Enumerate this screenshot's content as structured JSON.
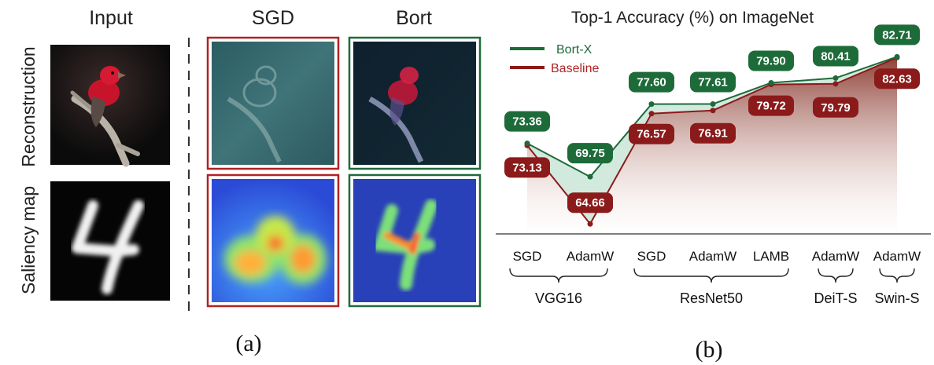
{
  "panel_a": {
    "caption": "(a)",
    "column_headers": {
      "input": "Input",
      "sgd": "SGD",
      "bort": "Bort"
    },
    "row_labels": {
      "reconstruction": "Reconstruction",
      "saliency": "Saliency map"
    },
    "colors": {
      "sgd_frame": "#b22222",
      "bort_frame": "#1e6b3a"
    }
  },
  "panel_b": {
    "caption": "(b)"
  },
  "chart_data": {
    "type": "line",
    "title": "Top-1 Accuracy (%) on ImageNet",
    "categories": [
      "SGD",
      "AdamW",
      "SGD",
      "AdamW",
      "LAMB",
      "AdamW",
      "AdamW"
    ],
    "groups": [
      {
        "name": "VGG16",
        "span": [
          0,
          1
        ]
      },
      {
        "name": "ResNet50",
        "span": [
          2,
          4
        ]
      },
      {
        "name": "DeiT-S",
        "span": [
          5,
          5
        ]
      },
      {
        "name": "Swin-S",
        "span": [
          6,
          6
        ]
      }
    ],
    "series": [
      {
        "name": "Bort-X",
        "color": "#1e6b3a",
        "values": [
          73.36,
          69.75,
          77.6,
          77.61,
          79.9,
          80.41,
          82.71
        ]
      },
      {
        "name": "Baseline",
        "color": "#8b1a1a",
        "values": [
          73.13,
          64.66,
          76.57,
          76.91,
          79.72,
          79.79,
          82.63
        ]
      }
    ],
    "legend_position": "top-left",
    "ylim": [
      64,
      83.5
    ],
    "grid": false
  }
}
